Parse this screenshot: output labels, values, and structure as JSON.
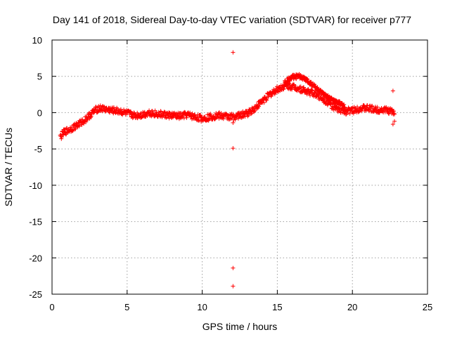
{
  "chart_data": {
    "type": "scatter",
    "title": "Day 141 of 2018, Sidereal Day-to-day VTEC variation (SDTVAR) for receiver p777",
    "xlabel": "GPS time / hours",
    "ylabel": "SDTVAR / TECUs",
    "xlim": [
      0,
      25
    ],
    "ylim": [
      -25,
      10
    ],
    "xticks": [
      0,
      5,
      10,
      15,
      20,
      25
    ],
    "yticks": [
      -25,
      -20,
      -15,
      -10,
      -5,
      0,
      5,
      10
    ],
    "grid": true,
    "marker": "+",
    "color": "#ff0000",
    "series": [
      {
        "name": "SDTVAR",
        "trend": [
          [
            0.55,
            -3.4
          ],
          [
            0.8,
            -2.7
          ],
          [
            1.2,
            -2.3
          ],
          [
            1.6,
            -1.8
          ],
          [
            2.0,
            -1.3
          ],
          [
            2.4,
            -0.6
          ],
          [
            2.8,
            0.2
          ],
          [
            3.1,
            0.6
          ],
          [
            3.5,
            0.5
          ],
          [
            4.0,
            0.3
          ],
          [
            4.5,
            0.2
          ],
          [
            5.0,
            -0.1
          ],
          [
            5.5,
            -0.4
          ],
          [
            6.0,
            -0.3
          ],
          [
            6.5,
            0.0
          ],
          [
            7.0,
            -0.2
          ],
          [
            7.5,
            -0.3
          ],
          [
            8.0,
            -0.4
          ],
          [
            8.5,
            -0.5
          ],
          [
            9.0,
            -0.3
          ],
          [
            9.5,
            -0.6
          ],
          [
            10.0,
            -0.8
          ],
          [
            10.5,
            -0.6
          ],
          [
            11.0,
            -0.4
          ],
          [
            11.5,
            -0.5
          ],
          [
            12.0,
            -0.6
          ],
          [
            12.5,
            -0.4
          ],
          [
            13.0,
            -0.1
          ],
          [
            13.5,
            0.6
          ],
          [
            14.0,
            1.6
          ],
          [
            14.5,
            2.5
          ],
          [
            15.0,
            3.2
          ],
          [
            15.5,
            3.7
          ],
          [
            16.0,
            3.6
          ],
          [
            16.5,
            3.3
          ],
          [
            17.0,
            2.9
          ],
          [
            17.5,
            2.6
          ],
          [
            18.0,
            2.0
          ],
          [
            18.5,
            1.2
          ],
          [
            19.0,
            0.4
          ],
          [
            19.5,
            0.2
          ],
          [
            20.0,
            0.3
          ],
          [
            20.5,
            0.6
          ],
          [
            21.0,
            0.6
          ],
          [
            21.5,
            0.4
          ],
          [
            22.0,
            0.4
          ],
          [
            22.4,
            0.3
          ],
          [
            22.8,
            0.0
          ]
        ],
        "upper_arc": [
          [
            15.5,
            4.2
          ],
          [
            16.0,
            4.9
          ],
          [
            16.5,
            5.0
          ],
          [
            17.0,
            4.4
          ],
          [
            17.5,
            3.6
          ],
          [
            18.0,
            2.6
          ],
          [
            18.5,
            1.9
          ],
          [
            19.0,
            1.4
          ],
          [
            19.5,
            0.9
          ]
        ],
        "outliers": [
          [
            12.05,
            8.3
          ],
          [
            12.05,
            -4.9
          ],
          [
            12.05,
            -21.4
          ],
          [
            12.05,
            -23.9
          ],
          [
            12.05,
            -1.4
          ],
          [
            22.7,
            3.0
          ],
          [
            22.7,
            -1.6
          ],
          [
            22.8,
            -1.2
          ]
        ]
      }
    ]
  }
}
